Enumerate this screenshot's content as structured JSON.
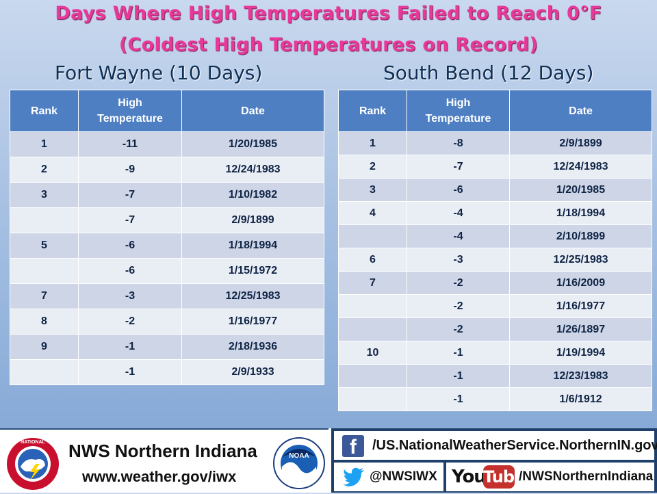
{
  "title": {
    "line1": "Days Where High Temperatures Failed to Reach 0°F",
    "line2": "(Coldest High Temperatures on Record)"
  },
  "fort_wayne": {
    "heading": "Fort Wayne (10 Days)",
    "columns": [
      "Rank",
      "High",
      "Temperature",
      "Date"
    ],
    "rows": [
      {
        "rank": "1",
        "temp": "-11",
        "date": "1/20/1985"
      },
      {
        "rank": "2",
        "temp": "-9",
        "date": "12/24/1983"
      },
      {
        "rank": "3",
        "temp": "-7",
        "date": "1/10/1982"
      },
      {
        "rank": "",
        "temp": "-7",
        "date": "2/9/1899"
      },
      {
        "rank": "5",
        "temp": "-6",
        "date": "1/18/1994"
      },
      {
        "rank": "",
        "temp": "-6",
        "date": "1/15/1972"
      },
      {
        "rank": "7",
        "temp": "-3",
        "date": "12/25/1983"
      },
      {
        "rank": "8",
        "temp": "-2",
        "date": "1/16/1977"
      },
      {
        "rank": "9",
        "temp": "-1",
        "date": "2/18/1936"
      },
      {
        "rank": "",
        "temp": "-1",
        "date": "2/9/1933"
      }
    ]
  },
  "south_bend": {
    "heading": "South Bend (12 Days)",
    "columns": [
      "Rank",
      "High",
      "Temperature",
      "Date"
    ],
    "rows": [
      {
        "rank": "1",
        "temp": "-8",
        "date": "2/9/1899"
      },
      {
        "rank": "2",
        "temp": "-7",
        "date": "12/24/1983"
      },
      {
        "rank": "3",
        "temp": "-6",
        "date": "1/20/1985"
      },
      {
        "rank": "4",
        "temp": "-4",
        "date": "1/18/1994"
      },
      {
        "rank": "",
        "temp": "-4",
        "date": "2/10/1899"
      },
      {
        "rank": "6",
        "temp": "-3",
        "date": "12/25/1983"
      },
      {
        "rank": "7",
        "temp": "-2",
        "date": "1/16/2009"
      },
      {
        "rank": "",
        "temp": "-2",
        "date": "1/16/1977"
      },
      {
        "rank": "",
        "temp": "-2",
        "date": "1/26/1897"
      },
      {
        "rank": "10",
        "temp": "-1",
        "date": "1/19/1994"
      },
      {
        "rank": "",
        "temp": "-1",
        "date": "12/23/1983"
      },
      {
        "rank": "",
        "temp": "-1",
        "date": "1/6/1912"
      }
    ]
  },
  "footer": {
    "office_name": "NWS Northern Indiana",
    "website": "www.weather.gov/iwx",
    "facebook": "/US.NationalWeatherService.NorthernIN.gov",
    "twitter": "@NWSIWX",
    "youtube": "/NWSNorthernIndiana",
    "nws_seal_text": "NATIONAL WEATHER SERVICE",
    "noaa_seal_text": "NOAA",
    "youtube_logo_you": "You",
    "youtube_logo_tube": "Tube",
    "facebook_logo_letter": "f",
    "icons": [
      "nws-logo-icon",
      "noaa-logo-icon",
      "facebook-icon",
      "twitter-icon",
      "youtube-icon"
    ],
    "colors": {
      "title": "#e8389a",
      "header": "#4f7fc3",
      "row_dark": "#cdd5e6",
      "row_light": "#e9edf4",
      "footer_band": "#1f3f6b"
    }
  }
}
